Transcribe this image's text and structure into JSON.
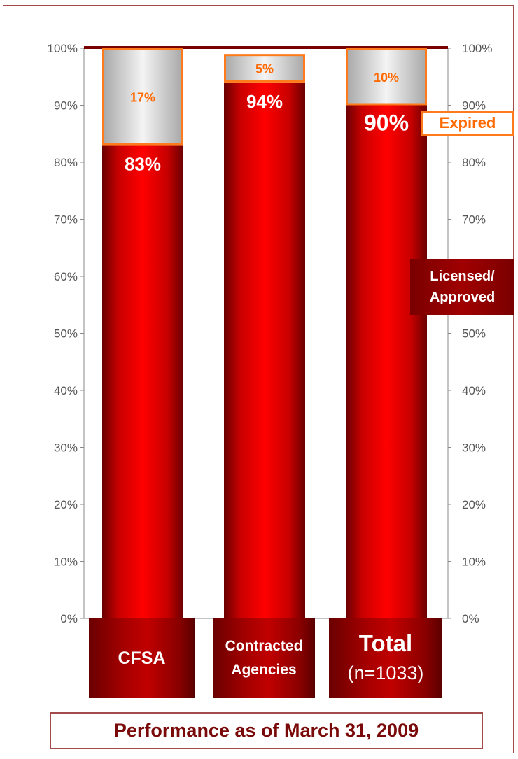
{
  "chart_data": {
    "type": "bar",
    "stacked": true,
    "categories": [
      "CFSA",
      "Contracted Agencies",
      "Total (n=1033)"
    ],
    "series": [
      {
        "name": "Licensed/ Approved",
        "values": [
          83,
          94,
          90
        ],
        "labels": [
          "83%",
          "94%",
          "90%"
        ],
        "color": "#e00000"
      },
      {
        "name": "Expired",
        "values": [
          17,
          5,
          10
        ],
        "labels": [
          "17%",
          "5%",
          "10%"
        ],
        "color": "#d9d9d9",
        "border_color": "#ff7a1a"
      }
    ],
    "ylim": [
      0,
      100
    ],
    "y_ticks": [
      "0%",
      "10%",
      "20%",
      "30%",
      "40%",
      "50%",
      "60%",
      "70%",
      "80%",
      "90%",
      "100%"
    ],
    "secondary_axis": "right",
    "grid": false
  },
  "category_labels": {
    "cfsa": [
      "CFSA"
    ],
    "contracted": [
      "Contracted",
      "Agencies"
    ],
    "total": [
      "Total",
      "(n=1033)"
    ]
  },
  "legend": {
    "expired": "Expired",
    "licensed_line1": "Licensed/",
    "licensed_line2": "Approved"
  },
  "footer": "Performance as of March 31, 2009",
  "colors": {
    "licensed": "#e00000",
    "licensed_dark": "#7a0000",
    "expired_fill": "#d9d9d9",
    "expired_border": "#ff7a1a",
    "axis": "#8a8a8a",
    "top_line": "#7a0000",
    "footer_text": "#7a0a0a"
  }
}
